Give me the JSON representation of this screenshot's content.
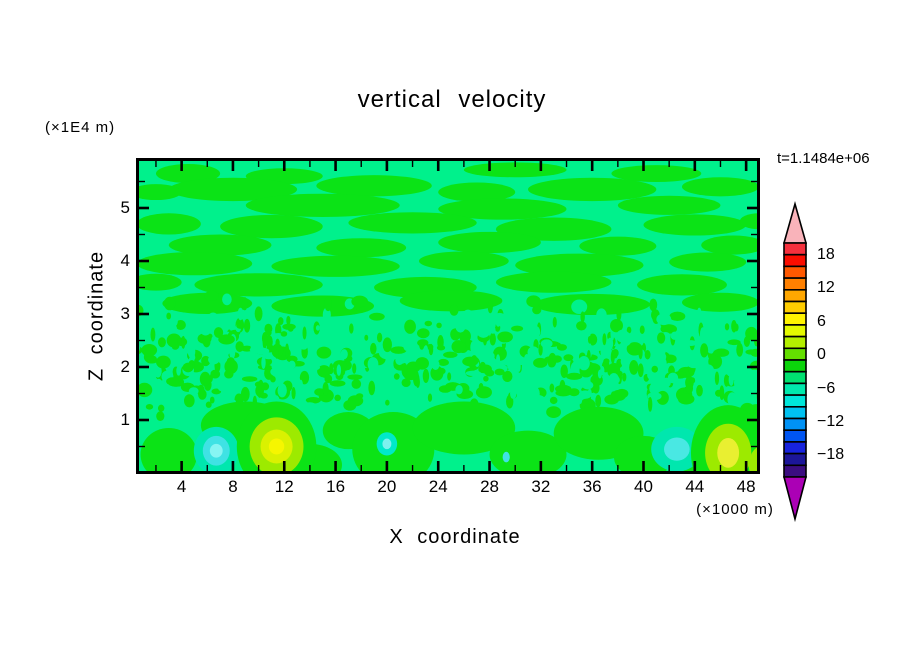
{
  "title": "vertical velocity",
  "annotations": {
    "time_label": "t=1.1484e+06",
    "y_units_label": "(×1E4 m)",
    "x_units_label": "(×1000 m)"
  },
  "axes": {
    "x_title": "X coordinate",
    "y_title": "Z coordinate"
  },
  "chart_data": {
    "type": "heatmap",
    "subtype": "filled-contour",
    "title": "vertical velocity",
    "xlabel": "X coordinate",
    "ylabel": "Z coordinate",
    "x_units_label": "(×1000 m)",
    "y_units_label": "(×1E4 m)",
    "time_label": "t=1.1484e+06",
    "xlim": [
      0.44,
      49.08
    ],
    "ylim": [
      0,
      5.94
    ],
    "x_ticks_major": [
      4,
      8,
      12,
      16,
      20,
      24,
      28,
      32,
      36,
      40,
      44,
      48
    ],
    "x_tick_minor_step": 2,
    "y_ticks_major": [
      1,
      2,
      3,
      4,
      5
    ],
    "y_tick_minor_step": 0.5,
    "grid": false,
    "legend_position": "right",
    "contour_interval": 2,
    "colorbar": {
      "labels": [
        "18",
        "12",
        "6",
        "0",
        "−6",
        "−12",
        "−18"
      ],
      "label_values": [
        18,
        12,
        6,
        0,
        -6,
        -12,
        -18
      ],
      "level_range": [
        -20,
        20
      ],
      "cell_colors_top_to_bottom": [
        "#f5303d",
        "#fa0d00",
        "#ff5800",
        "#ff8000",
        "#ffa700",
        "#ffcd00",
        "#fff300",
        "#e4fa00",
        "#b4ef00",
        "#64df00",
        "#0bd50b",
        "#00e170",
        "#00e9ac",
        "#00e6da",
        "#00c2f2",
        "#0092f6",
        "#0055f2",
        "#1723dd",
        "#1c1699",
        "#3b0d80"
      ],
      "over_arrow_color": "#f9b3ba",
      "under_arrow_color": "#ab00b5"
    },
    "field": {
      "description": "Vertical velocity mostly within ±2: smooth horizontal streaks aloft (z>3), fine speckled turbulence for 1<z<3, and isolated stronger cells (weak updrafts/downdrafts, cyan and yellow) near the surface.",
      "background_color": "#00f18c",
      "background_level_band": [
        -2,
        0
      ],
      "streak_color": "#0be316",
      "streak_level_band": [
        0,
        2
      ],
      "speckle_band_z": [
        0.9,
        3.35
      ],
      "streaks": [
        [
          4.5,
          5.65,
          2.5,
          0.18
        ],
        [
          12,
          5.6,
          3,
          0.15
        ],
        [
          30,
          5.72,
          4,
          0.14
        ],
        [
          41,
          5.65,
          3.5,
          0.16
        ],
        [
          8,
          5.35,
          5,
          0.22
        ],
        [
          19,
          5.42,
          4.5,
          0.2
        ],
        [
          27,
          5.3,
          3,
          0.18
        ],
        [
          36,
          5.35,
          5,
          0.22
        ],
        [
          46,
          5.4,
          3,
          0.18
        ],
        [
          2,
          5.3,
          2,
          0.15
        ],
        [
          15,
          5.05,
          6,
          0.22
        ],
        [
          29,
          4.98,
          5,
          0.2
        ],
        [
          42,
          5.05,
          4,
          0.18
        ],
        [
          3,
          4.7,
          2.5,
          0.2
        ],
        [
          11,
          4.65,
          4,
          0.22
        ],
        [
          22,
          4.72,
          5,
          0.2
        ],
        [
          33,
          4.6,
          4.5,
          0.22
        ],
        [
          44,
          4.68,
          4,
          0.2
        ],
        [
          49,
          4.75,
          1.5,
          0.15
        ],
        [
          7,
          4.3,
          4,
          0.2
        ],
        [
          18,
          4.25,
          3.5,
          0.18
        ],
        [
          28,
          4.35,
          4,
          0.2
        ],
        [
          38,
          4.28,
          3,
          0.18
        ],
        [
          47,
          4.3,
          2.5,
          0.18
        ],
        [
          5,
          3.95,
          4.5,
          0.22
        ],
        [
          16,
          3.9,
          5,
          0.2
        ],
        [
          26,
          4.0,
          3.5,
          0.18
        ],
        [
          35,
          3.92,
          5,
          0.22
        ],
        [
          45,
          3.98,
          3,
          0.18
        ],
        [
          10,
          3.55,
          5,
          0.22
        ],
        [
          23,
          3.5,
          4,
          0.2
        ],
        [
          33,
          3.6,
          4.5,
          0.2
        ],
        [
          43,
          3.55,
          3.5,
          0.2
        ],
        [
          2,
          3.6,
          2,
          0.16
        ],
        [
          6,
          3.2,
          3.5,
          0.2
        ],
        [
          15,
          3.15,
          4,
          0.2
        ],
        [
          25,
          3.25,
          4,
          0.2
        ],
        [
          36,
          3.18,
          4.5,
          0.2
        ],
        [
          46,
          3.22,
          3,
          0.18
        ]
      ],
      "bottom_patches": [
        [
          3,
          0.35,
          2.2,
          0.5
        ],
        [
          9,
          0.9,
          3.5,
          0.45
        ],
        [
          14,
          0.15,
          2.5,
          0.4
        ],
        [
          17,
          0.8,
          2.0,
          0.35
        ],
        [
          20.5,
          0.45,
          3.2,
          0.7
        ],
        [
          26,
          0.85,
          4,
          0.5
        ],
        [
          31,
          0.35,
          3,
          0.45
        ],
        [
          36.5,
          0.75,
          3.5,
          0.5
        ],
        [
          40,
          0.3,
          2.3,
          0.4
        ],
        [
          44.8,
          0.15,
          1.8,
          0.3
        ],
        [
          48.8,
          0.8,
          1.4,
          0.5
        ]
      ],
      "features": [
        {
          "name": "cyan-cell-left",
          "x": 6.7,
          "z": 0.42,
          "rings": [
            [
              "#00e7ae",
              1.75,
              0.45
            ],
            [
              "#3fe2e4",
              1.05,
              0.28
            ],
            [
              "#86f5f3",
              0.5,
              0.13
            ]
          ]
        },
        {
          "name": "yellow-cell-left",
          "x": 11.4,
          "z": 0.5,
          "rings": [
            [
              "#0be316",
              3.1,
              0.85
            ],
            [
              "#9dea00",
              2.1,
              0.55
            ],
            [
              "#daf101",
              1.25,
              0.32
            ],
            [
              "#f6f600",
              0.6,
              0.15
            ]
          ]
        },
        {
          "name": "cyan-cell-mid",
          "x": 20.0,
          "z": 0.55,
          "rings": [
            [
              "#00e9c9",
              0.8,
              0.22
            ],
            [
              "#7df1ef",
              0.35,
              0.1
            ]
          ]
        },
        {
          "name": "cyan-dot",
          "x": 29.3,
          "z": 0.3,
          "rings": [
            [
              "#3fe2e4",
              0.28,
              0.1
            ]
          ]
        },
        {
          "name": "turquoise-cell-right",
          "x": 42.6,
          "z": 0.45,
          "rings": [
            [
              "#00e7ae",
              2.0,
              0.42
            ],
            [
              "#49e8e3",
              1.0,
              0.22
            ]
          ]
        },
        {
          "name": "yellow-cell-right",
          "x": 46.6,
          "z": 0.38,
          "rings": [
            [
              "#0be316",
              2.9,
              0.9
            ],
            [
              "#9dea00",
              1.8,
              0.55
            ],
            [
              "#e9ef31",
              0.85,
              0.28
            ]
          ]
        },
        {
          "name": "chartreuse-corner",
          "x": 49.6,
          "z": 0.15,
          "rings": [
            [
              "#9dea00",
              1.4,
              0.4
            ]
          ]
        }
      ]
    }
  }
}
